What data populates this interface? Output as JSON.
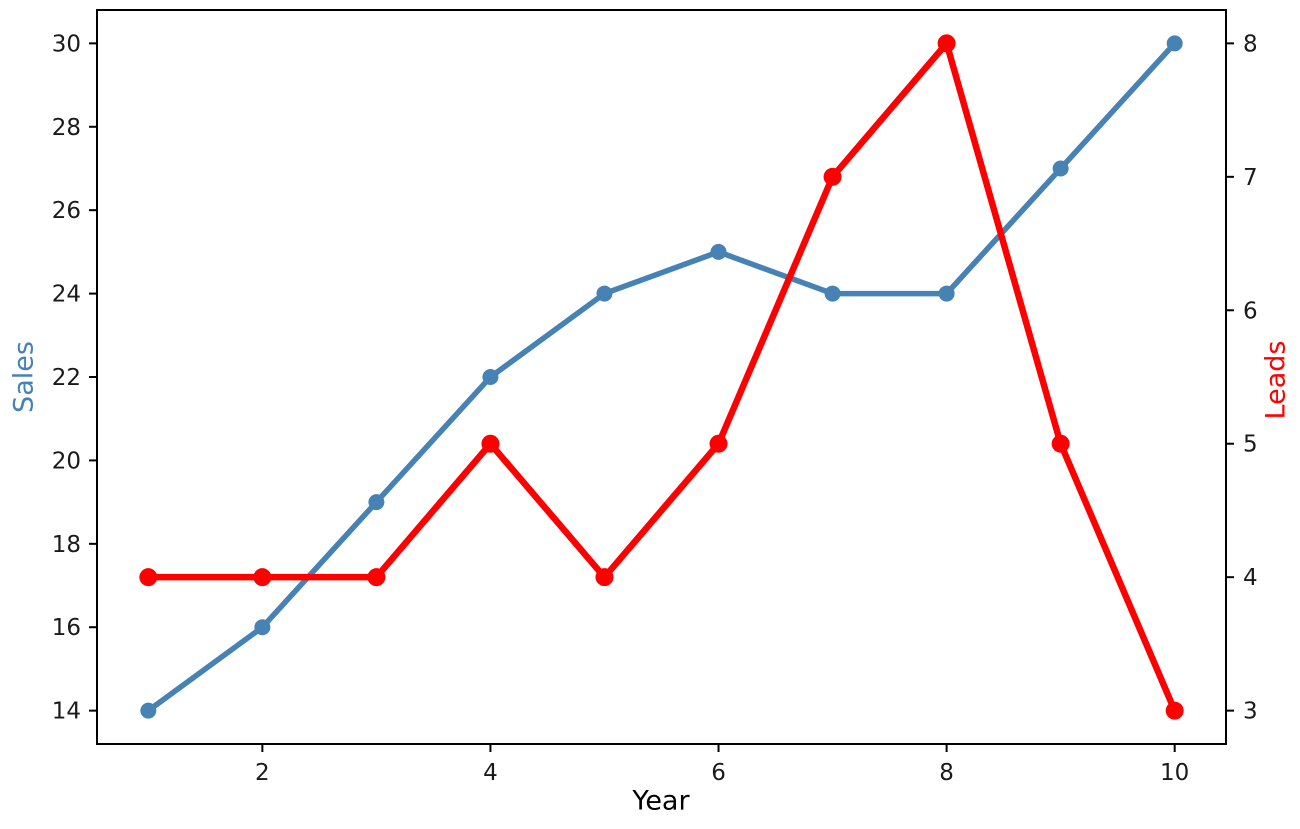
{
  "chart_data": {
    "type": "line",
    "title": "",
    "xlabel": "Year",
    "ylabel_left": "Sales",
    "ylabel_right": "Leads",
    "x": [
      1,
      2,
      3,
      4,
      5,
      6,
      7,
      8,
      9,
      10
    ],
    "series": [
      {
        "name": "Sales",
        "axis": "left",
        "color": "#4682B4",
        "line_width": 5.5,
        "marker": "o",
        "marker_radius": 8,
        "values": [
          14,
          16,
          19,
          22,
          24,
          25,
          24,
          24,
          27,
          30
        ]
      },
      {
        "name": "Leads",
        "axis": "right",
        "color": "#FF0000",
        "line_width": 6.5,
        "marker": "o",
        "marker_radius": 9,
        "values": [
          4,
          4,
          4,
          5,
          4,
          5,
          7,
          8,
          5,
          3
        ]
      }
    ],
    "x_ticks": [
      2,
      4,
      6,
      8,
      10
    ],
    "y_ticks_left": [
      14,
      16,
      18,
      20,
      22,
      24,
      26,
      28,
      30
    ],
    "y_ticks_right": [
      3,
      4,
      5,
      6,
      7,
      8
    ],
    "xlim": [
      0.55,
      10.45
    ],
    "ylim_left": [
      13.2,
      30.8
    ],
    "ylim_right": [
      2.75,
      8.25
    ],
    "grid": false,
    "legend": "none",
    "axis_color": "#000000",
    "tick_label_color": "#1a1a1a",
    "background_color": "#ffffff"
  }
}
